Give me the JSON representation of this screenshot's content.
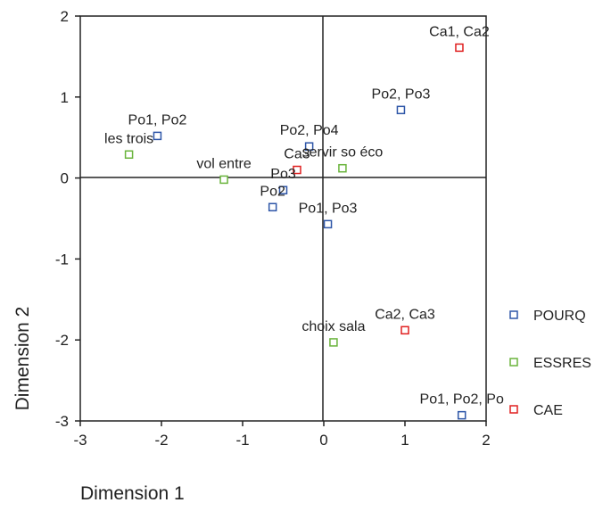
{
  "chart_data": {
    "type": "scatter",
    "xlabel": "Dimension 1",
    "ylabel": "Dimension 2",
    "xlim": [
      -3,
      2
    ],
    "ylim": [
      -3,
      2
    ],
    "x_ticks": [
      "-3",
      "-2",
      "-1",
      "0",
      "1",
      "2"
    ],
    "y_ticks": [
      "2",
      "1",
      "0",
      "-1",
      "-2",
      "-3"
    ],
    "reference_lines": {
      "x": 0,
      "y": 0
    },
    "legend_position": "right",
    "series": [
      {
        "name": "POURQ",
        "color": "#2e56a8",
        "points": [
          {
            "x": -2.05,
            "y": 0.52,
            "label": "Po1, Po2"
          },
          {
            "x": 0.95,
            "y": 0.84,
            "label": "Po2, Po3"
          },
          {
            "x": -0.18,
            "y": 0.39,
            "label": "Po2, Po4"
          },
          {
            "x": -0.5,
            "y": -0.15,
            "label": "Po3"
          },
          {
            "x": -0.63,
            "y": -0.36,
            "label": "Po2"
          },
          {
            "x": 0.05,
            "y": -0.57,
            "label": "Po1, Po3"
          },
          {
            "x": 1.7,
            "y": -2.93,
            "label": "Po1, Po2, Po"
          }
        ]
      },
      {
        "name": "ESSRES",
        "color": "#6ab43c",
        "points": [
          {
            "x": -2.4,
            "y": 0.29,
            "label": "les trois"
          },
          {
            "x": -1.23,
            "y": -0.02,
            "label": "vol entre"
          },
          {
            "x": 0.23,
            "y": 0.12,
            "label": "servir so éco"
          },
          {
            "x": 0.12,
            "y": -2.03,
            "label": "choix sala"
          }
        ]
      },
      {
        "name": "CAE",
        "color": "#e02020",
        "points": [
          {
            "x": 1.67,
            "y": 1.61,
            "label": "Ca1, Ca2"
          },
          {
            "x": -0.33,
            "y": 0.1,
            "label": "Ca3"
          },
          {
            "x": 1.0,
            "y": -1.88,
            "label": "Ca2, Ca3"
          }
        ]
      }
    ]
  }
}
